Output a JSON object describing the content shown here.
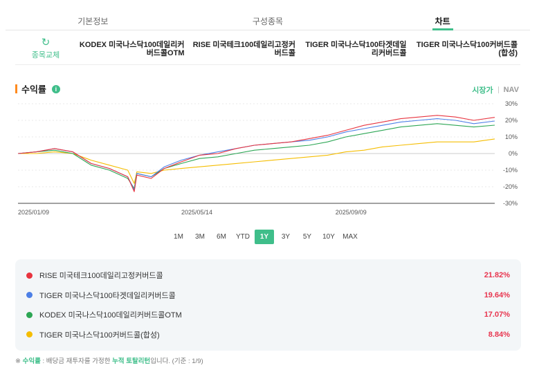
{
  "tabs": [
    {
      "label": "기본정보",
      "active": false
    },
    {
      "label": "구성종목",
      "active": false
    },
    {
      "label": "차트",
      "active": true
    }
  ],
  "compare": {
    "swap_label": "종목교체",
    "items": [
      "KODEX 미국나스닥100데일리커버드콜OTM",
      "RISE 미국테크100데일리고정커버드콜",
      "TIGER 미국나스닥100타겟데일리커버드콜",
      "TIGER 미국나스닥100커버드콜(합성)"
    ]
  },
  "section": {
    "title": "수익률",
    "info": "i"
  },
  "price_toggle": {
    "market": "시장가",
    "nav": "NAV"
  },
  "ranges": [
    "1M",
    "3M",
    "6M",
    "YTD",
    "1Y",
    "3Y",
    "5Y",
    "10Y",
    "MAX"
  ],
  "active_range": "1Y",
  "chart_data": {
    "type": "line",
    "x_ticks": [
      "2025/01/09",
      "2025/05/14",
      "2025/09/09"
    ],
    "x_domain": [
      "2025/01/09",
      "2026/01/09"
    ],
    "y_ticks": [
      "30%",
      "20%",
      "10%",
      "0%",
      "-10%",
      "-20%",
      "-30%"
    ],
    "ylim": [
      -30,
      30
    ],
    "grid": true,
    "x": [
      "2025-01-09",
      "2025-01-23",
      "2025-02-06",
      "2025-02-20",
      "2025-03-06",
      "2025-03-20",
      "2025-04-03",
      "2025-04-08",
      "2025-04-10",
      "2025-04-21",
      "2025-05-01",
      "2025-05-14",
      "2025-05-28",
      "2025-06-11",
      "2025-06-25",
      "2025-07-09",
      "2025-07-23",
      "2025-08-06",
      "2025-08-20",
      "2025-09-03",
      "2025-09-17",
      "2025-10-01",
      "2025-10-15",
      "2025-10-29",
      "2025-11-12",
      "2025-11-26",
      "2025-12-10",
      "2025-12-24",
      "2026-01-09"
    ],
    "series": [
      {
        "name": "RISE 미국테크100데일리고정커버드콜",
        "color": "#e8343f",
        "final": "21.82%",
        "values": [
          0,
          1,
          3,
          1,
          -6,
          -9,
          -14,
          -23,
          -13,
          -15,
          -9,
          -5,
          -1,
          0,
          3,
          5,
          6,
          7,
          9,
          11,
          14,
          17,
          19,
          21,
          22,
          23,
          22,
          20,
          21.8
        ]
      },
      {
        "name": "TIGER 미국나스닥100타겟데일리커버드콜",
        "color": "#4c7fe6",
        "final": "19.64%",
        "values": [
          0,
          1,
          3,
          1,
          -6,
          -9,
          -14,
          -22,
          -12,
          -14,
          -8,
          -4,
          -1,
          1,
          3,
          5,
          6,
          7,
          8,
          10,
          13,
          15,
          17,
          19,
          20,
          21,
          20,
          18,
          19.6
        ]
      },
      {
        "name": "KODEX 미국나스닥100데일리커버드콜OTM",
        "color": "#2ca654",
        "final": "17.07%",
        "values": [
          0,
          1,
          2,
          0,
          -7,
          -10,
          -15,
          -21,
          -12,
          -14,
          -9,
          -6,
          -3,
          -2,
          0,
          2,
          3,
          4,
          5,
          7,
          10,
          12,
          14,
          16,
          17,
          18,
          17,
          16,
          17.1
        ]
      },
      {
        "name": "TIGER 미국나스닥100커버드콜(합성)",
        "color": "#f5bd00",
        "final": "8.84%",
        "values": [
          0,
          0,
          1,
          0,
          -4,
          -7,
          -10,
          -18,
          -11,
          -12,
          -10,
          -9,
          -8,
          -7,
          -6,
          -5,
          -4,
          -3,
          -2,
          -1,
          1,
          2,
          4,
          5,
          6,
          7,
          7,
          7,
          8.8
        ]
      }
    ]
  },
  "footnote": {
    "mark": "※",
    "term": "수익률",
    "text1": " : 배당금 재투자를 가정한 ",
    "term2": "누적 토탈리턴",
    "text2": "입니다. (기준 : 1/9)"
  }
}
